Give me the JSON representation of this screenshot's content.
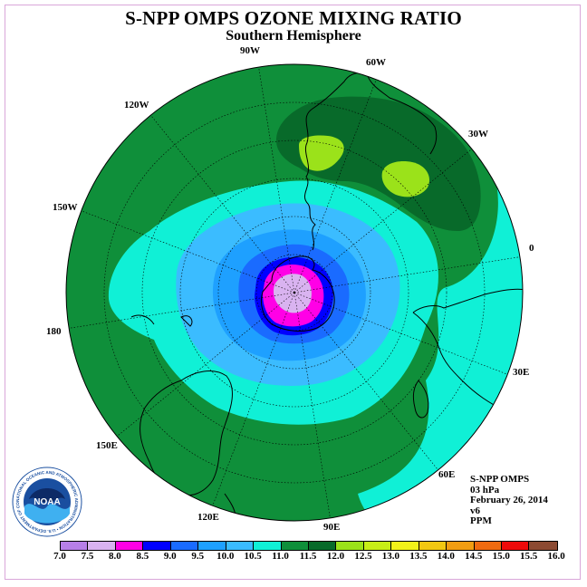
{
  "title": "S-NPP OMPS OZONE MIXING RATIO",
  "subtitle": "Southern Hemisphere",
  "longitude_labels": [
    "90W",
    "60W",
    "30W",
    "0",
    "30E",
    "60E",
    "90E",
    "120E",
    "150E",
    "180",
    "150W",
    "120W"
  ],
  "info": {
    "instrument": "S-NPP OMPS",
    "level": "03 hPa",
    "date": "February 26, 2014",
    "version": "v6",
    "units": "PPM"
  },
  "logo": {
    "text": "NOAA",
    "ring_text": "NATIONAL OCEANIC AND ATMOSPHERIC ADMINISTRATION • U.S. DEPARTMENT OF COMMERCE •"
  },
  "colorbar": {
    "ticks": [
      "7.0",
      "7.5",
      "8.0",
      "8.5",
      "9.0",
      "9.5",
      "10.0",
      "10.5",
      "11.0",
      "11.5",
      "12.0",
      "12.5",
      "13.0",
      "13.5",
      "14.0",
      "14.5",
      "15.0",
      "15.5",
      "16.0"
    ],
    "colors": [
      "#b77fe8",
      "#d9b3f0",
      "#ff00e6",
      "#0000ff",
      "#1a6bff",
      "#1ea0ff",
      "#3bbcff",
      "#10f0d6",
      "#0f8f3a",
      "#086a2a",
      "#9be21a",
      "#c7ee17",
      "#f2f21a",
      "#f2c712",
      "#f29d12",
      "#ef6a10",
      "#ee0a0a",
      "#8c4a32"
    ]
  },
  "map_colors": {
    "band_11_0_to_11_5": "#0f8f3a",
    "band_11_5_to_12_0": "#086a2a",
    "band_12_0_to_12_5": "#9be21a",
    "band_10_5_to_11_0": "#10f0d6",
    "band_10_0_to_10_5": "#3bbcff",
    "band_9_5_to_10_0": "#1ea0ff",
    "band_9_0_to_9_5": "#1a6bff",
    "band_8_5_to_9_0": "#0000ff",
    "band_8_0_to_8_5": "#ff00e6",
    "band_7_5_to_8_0": "#d9b3f0"
  }
}
